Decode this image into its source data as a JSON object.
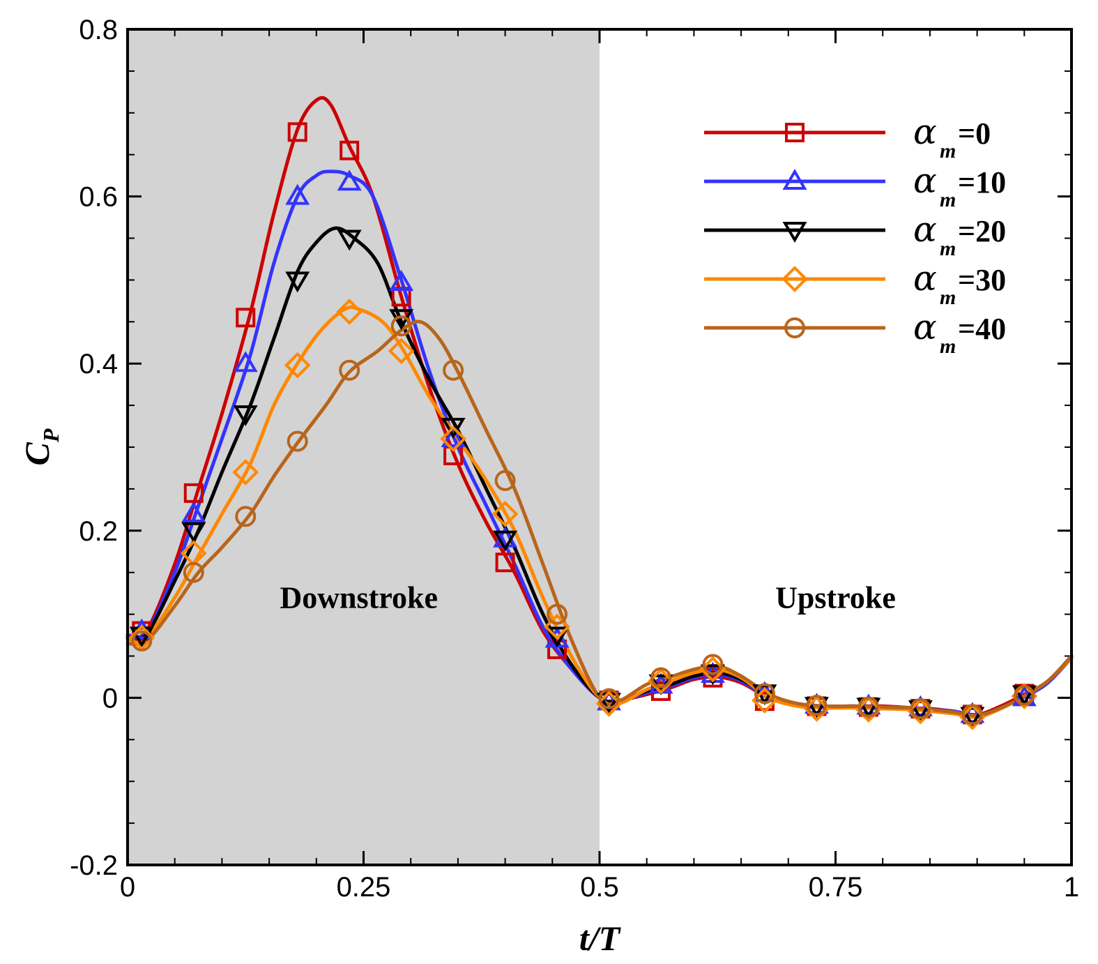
{
  "chart_data": {
    "type": "line",
    "title": "",
    "xlabel": "t/T",
    "ylabel": "C",
    "ylabel_subscript": "P",
    "xlim": [
      0,
      1
    ],
    "ylim": [
      -0.2,
      0.8
    ],
    "x_ticks": [
      0,
      0.25,
      0.5,
      0.75,
      1
    ],
    "x_tick_labels": [
      "0",
      "0.25",
      "0.5",
      "0.75",
      "1"
    ],
    "y_ticks": [
      -0.2,
      0,
      0.2,
      0.4,
      0.6,
      0.8
    ],
    "y_tick_labels": [
      "-0.2",
      "0",
      "0.2",
      "0.4",
      "0.6",
      "0.8"
    ],
    "grid": false,
    "legend_position": "top-right",
    "shaded_region": {
      "x_start": 0,
      "x_end": 0.5,
      "color": "#d3d3d3"
    },
    "annotations": [
      {
        "text": "Downstroke",
        "x": 0.245,
        "y": 0.12
      },
      {
        "text": "Upstroke",
        "x": 0.75,
        "y": 0.12
      }
    ],
    "series": [
      {
        "name": "α_m=0",
        "alpha_symbol": "α",
        "subscript": "m",
        "value_text": "=0",
        "color": "#cc0000",
        "marker": "square",
        "line_x": [
          0,
          0.02,
          0.05,
          0.075,
          0.1,
          0.13,
          0.155,
          0.18,
          0.2,
          0.215,
          0.235,
          0.26,
          0.29,
          0.32,
          0.35,
          0.38,
          0.41,
          0.44,
          0.47,
          0.5,
          0.52,
          0.55,
          0.575,
          0.6,
          0.625,
          0.65,
          0.68,
          0.71,
          0.74,
          0.77,
          0.8,
          0.83,
          0.85,
          0.875,
          0.9,
          0.925,
          0.95,
          0.975,
          1
        ],
        "line_y": [
          0.075,
          0.08,
          0.16,
          0.25,
          0.34,
          0.46,
          0.58,
          0.68,
          0.715,
          0.71,
          0.66,
          0.6,
          0.48,
          0.37,
          0.28,
          0.21,
          0.15,
          0.08,
          0.035,
          0,
          -0.003,
          0.004,
          0.012,
          0.022,
          0.025,
          0.018,
          0,
          -0.008,
          -0.01,
          -0.01,
          -0.01,
          -0.012,
          -0.013,
          -0.016,
          -0.02,
          -0.01,
          0.004,
          0.02,
          0.05
        ],
        "marker_x": [
          0.015,
          0.07,
          0.125,
          0.18,
          0.235,
          0.29,
          0.345,
          0.4,
          0.455,
          0.51,
          0.565,
          0.62,
          0.675,
          0.73,
          0.785,
          0.84,
          0.895,
          0.95
        ],
        "marker_y": [
          0.08,
          0.245,
          0.455,
          0.677,
          0.655,
          0.48,
          0.29,
          0.162,
          0.058,
          -0.003,
          0.008,
          0.024,
          -0.004,
          -0.01,
          -0.011,
          -0.013,
          -0.02,
          0.005
        ]
      },
      {
        "name": "α_m=10",
        "alpha_symbol": "α",
        "subscript": "m",
        "value_text": "=10",
        "color": "#3333ff",
        "marker": "triangle-up",
        "line_x": [
          0,
          0.02,
          0.05,
          0.075,
          0.1,
          0.13,
          0.155,
          0.18,
          0.2,
          0.215,
          0.235,
          0.26,
          0.29,
          0.32,
          0.35,
          0.38,
          0.41,
          0.44,
          0.47,
          0.5,
          0.52,
          0.55,
          0.575,
          0.6,
          0.625,
          0.65,
          0.68,
          0.71,
          0.74,
          0.77,
          0.8,
          0.83,
          0.85,
          0.875,
          0.9,
          0.925,
          0.95,
          0.975,
          1
        ],
        "line_y": [
          0.075,
          0.078,
          0.15,
          0.23,
          0.31,
          0.41,
          0.52,
          0.6,
          0.625,
          0.63,
          0.625,
          0.6,
          0.5,
          0.39,
          0.3,
          0.23,
          0.16,
          0.085,
          0.035,
          0,
          -0.004,
          0.006,
          0.014,
          0.024,
          0.028,
          0.02,
          0,
          -0.008,
          -0.01,
          -0.01,
          -0.011,
          -0.012,
          -0.014,
          -0.016,
          -0.021,
          -0.012,
          0.001,
          0.018,
          0.048
        ],
        "marker_x": [
          0.015,
          0.07,
          0.125,
          0.18,
          0.235,
          0.29,
          0.345,
          0.4,
          0.455,
          0.51,
          0.565,
          0.62,
          0.675,
          0.73,
          0.785,
          0.84,
          0.895,
          0.95
        ],
        "marker_y": [
          0.08,
          0.22,
          0.4,
          0.6,
          0.617,
          0.497,
          0.31,
          0.19,
          0.07,
          -0.005,
          0.015,
          0.028,
          0.005,
          -0.009,
          -0.01,
          -0.012,
          -0.02,
          0.0
        ]
      },
      {
        "name": "α_m=20",
        "alpha_symbol": "α",
        "subscript": "m",
        "value_text": "=20",
        "color": "#000000",
        "marker": "triangle-down",
        "line_x": [
          0,
          0.02,
          0.05,
          0.075,
          0.1,
          0.13,
          0.155,
          0.18,
          0.2,
          0.22,
          0.24,
          0.265,
          0.29,
          0.32,
          0.35,
          0.38,
          0.41,
          0.44,
          0.47,
          0.5,
          0.52,
          0.55,
          0.575,
          0.6,
          0.625,
          0.65,
          0.68,
          0.71,
          0.74,
          0.77,
          0.8,
          0.83,
          0.85,
          0.875,
          0.9,
          0.925,
          0.95,
          0.975,
          1
        ],
        "line_y": [
          0.072,
          0.076,
          0.14,
          0.2,
          0.27,
          0.35,
          0.43,
          0.51,
          0.545,
          0.562,
          0.55,
          0.52,
          0.45,
          0.38,
          0.32,
          0.25,
          0.18,
          0.1,
          0.04,
          0,
          -0.004,
          0.008,
          0.016,
          0.026,
          0.03,
          0.022,
          0.002,
          -0.007,
          -0.01,
          -0.01,
          -0.011,
          -0.012,
          -0.014,
          -0.017,
          -0.021,
          -0.012,
          0.002,
          0.02,
          0.048
        ],
        "marker_x": [
          0.015,
          0.07,
          0.125,
          0.18,
          0.235,
          0.29,
          0.345,
          0.4,
          0.455,
          0.51,
          0.565,
          0.62,
          0.675,
          0.73,
          0.785,
          0.84,
          0.895,
          0.95
        ],
        "marker_y": [
          0.075,
          0.2,
          0.34,
          0.5,
          0.55,
          0.455,
          0.325,
          0.19,
          0.075,
          -0.004,
          0.018,
          0.03,
          0.006,
          -0.009,
          -0.01,
          -0.013,
          -0.021,
          0.005
        ]
      },
      {
        "name": "α_m=30",
        "alpha_symbol": "α",
        "subscript": "m",
        "value_text": "=30",
        "color": "#ff8800",
        "marker": "diamond",
        "line_x": [
          0,
          0.02,
          0.05,
          0.075,
          0.1,
          0.13,
          0.155,
          0.18,
          0.205,
          0.23,
          0.245,
          0.27,
          0.29,
          0.32,
          0.35,
          0.38,
          0.41,
          0.44,
          0.47,
          0.5,
          0.52,
          0.55,
          0.575,
          0.6,
          0.625,
          0.65,
          0.68,
          0.71,
          0.74,
          0.77,
          0.8,
          0.83,
          0.85,
          0.875,
          0.9,
          0.925,
          0.95,
          0.975,
          1
        ],
        "line_y": [
          0.07,
          0.072,
          0.12,
          0.17,
          0.22,
          0.28,
          0.35,
          0.4,
          0.44,
          0.465,
          0.465,
          0.45,
          0.42,
          0.36,
          0.31,
          0.26,
          0.2,
          0.12,
          0.05,
          0,
          -0.007,
          0.01,
          0.02,
          0.03,
          0.034,
          0.024,
          0.0,
          -0.01,
          -0.012,
          -0.012,
          -0.013,
          -0.014,
          -0.016,
          -0.019,
          -0.023,
          -0.013,
          0.002,
          0.02,
          0.048
        ],
        "marker_x": [
          0.015,
          0.07,
          0.125,
          0.18,
          0.235,
          0.29,
          0.345,
          0.4,
          0.455,
          0.51,
          0.565,
          0.62,
          0.675,
          0.73,
          0.785,
          0.84,
          0.895,
          0.95
        ],
        "marker_y": [
          0.072,
          0.173,
          0.27,
          0.398,
          0.462,
          0.415,
          0.31,
          0.22,
          0.085,
          -0.007,
          0.02,
          0.034,
          -0.003,
          -0.013,
          -0.014,
          -0.016,
          -0.023,
          0.002
        ]
      },
      {
        "name": "α_m=40",
        "alpha_symbol": "α",
        "subscript": "m",
        "value_text": "=40",
        "color": "#b8651b",
        "marker": "circle",
        "line_x": [
          0,
          0.02,
          0.05,
          0.075,
          0.1,
          0.13,
          0.155,
          0.18,
          0.21,
          0.235,
          0.265,
          0.29,
          0.31,
          0.33,
          0.35,
          0.38,
          0.41,
          0.44,
          0.47,
          0.5,
          0.52,
          0.55,
          0.575,
          0.6,
          0.625,
          0.65,
          0.68,
          0.71,
          0.74,
          0.77,
          0.8,
          0.83,
          0.85,
          0.875,
          0.9,
          0.925,
          0.95,
          0.975,
          1
        ],
        "line_y": [
          0.065,
          0.068,
          0.11,
          0.15,
          0.18,
          0.22,
          0.265,
          0.305,
          0.35,
          0.39,
          0.415,
          0.44,
          0.45,
          0.43,
          0.39,
          0.32,
          0.25,
          0.16,
          0.07,
          0,
          -0.004,
          0.016,
          0.025,
          0.034,
          0.038,
          0.026,
          0.004,
          -0.007,
          -0.01,
          -0.01,
          -0.011,
          -0.012,
          -0.014,
          -0.017,
          -0.021,
          -0.012,
          0.002,
          0.02,
          0.05
        ],
        "marker_x": [
          0.015,
          0.07,
          0.125,
          0.18,
          0.235,
          0.29,
          0.345,
          0.4,
          0.455,
          0.51,
          0.565,
          0.62,
          0.675,
          0.73,
          0.785,
          0.84,
          0.895,
          0.95
        ],
        "marker_y": [
          0.068,
          0.15,
          0.217,
          0.307,
          0.392,
          0.445,
          0.392,
          0.26,
          0.1,
          -0.001,
          0.024,
          0.04,
          0.005,
          -0.009,
          -0.011,
          -0.013,
          -0.02,
          0.003
        ]
      }
    ]
  }
}
